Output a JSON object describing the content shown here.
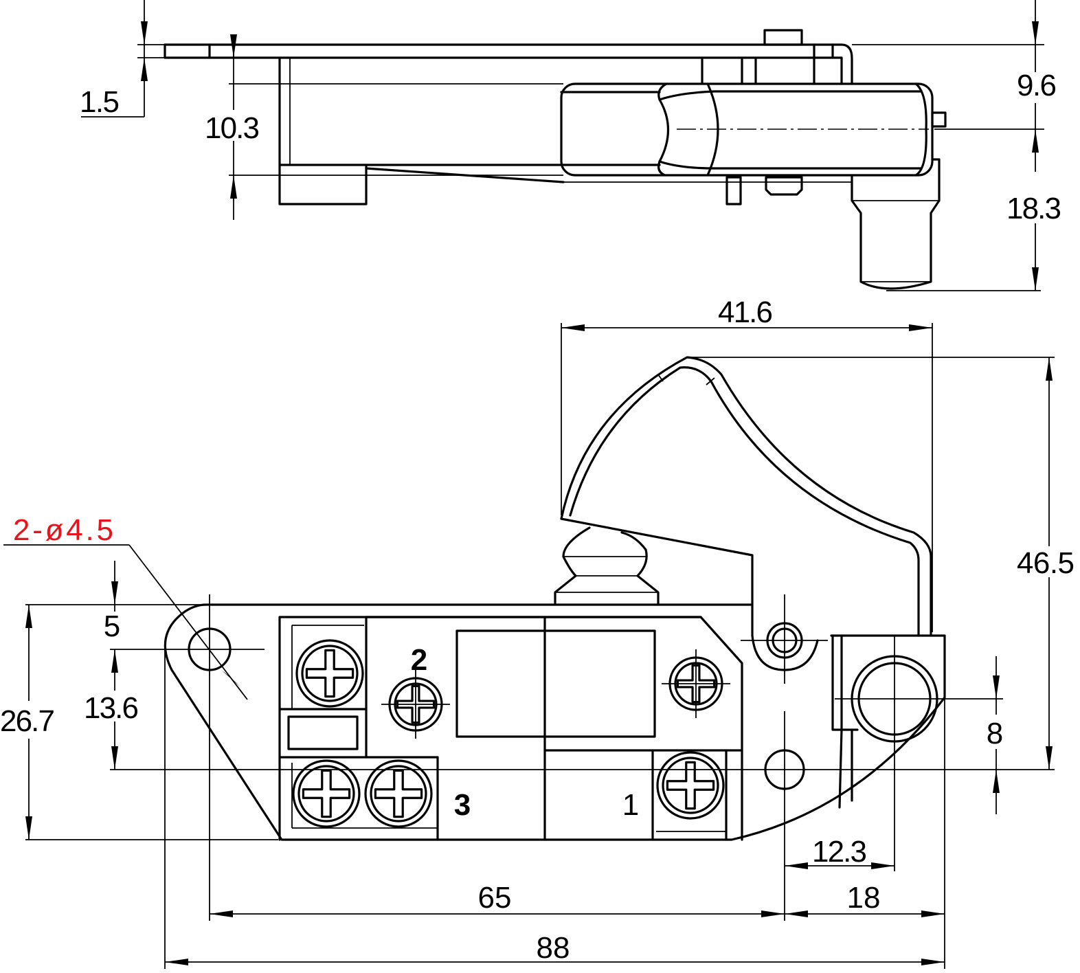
{
  "drawing": {
    "dimensions": {
      "plate_thickness": "1.5",
      "body_height_side": "10.3",
      "top_to_axis": "9.6",
      "axis_to_bottom": "18.3",
      "trigger_width": "41.6",
      "total_height": "46.5",
      "holes": "2-ø4.5",
      "hole_offset_top": "5",
      "hole_to_hole_vertical": "13.6",
      "body_height_front": "26.7",
      "button_offset": "8",
      "button_to_hole": "12.3",
      "hole_spacing": "65",
      "hole_to_right_edge": "18",
      "overall_length": "88"
    },
    "terminals": [
      "1",
      "2",
      "3"
    ],
    "colors": {
      "line": "#000000",
      "hole_callout": "#e8131b"
    }
  }
}
